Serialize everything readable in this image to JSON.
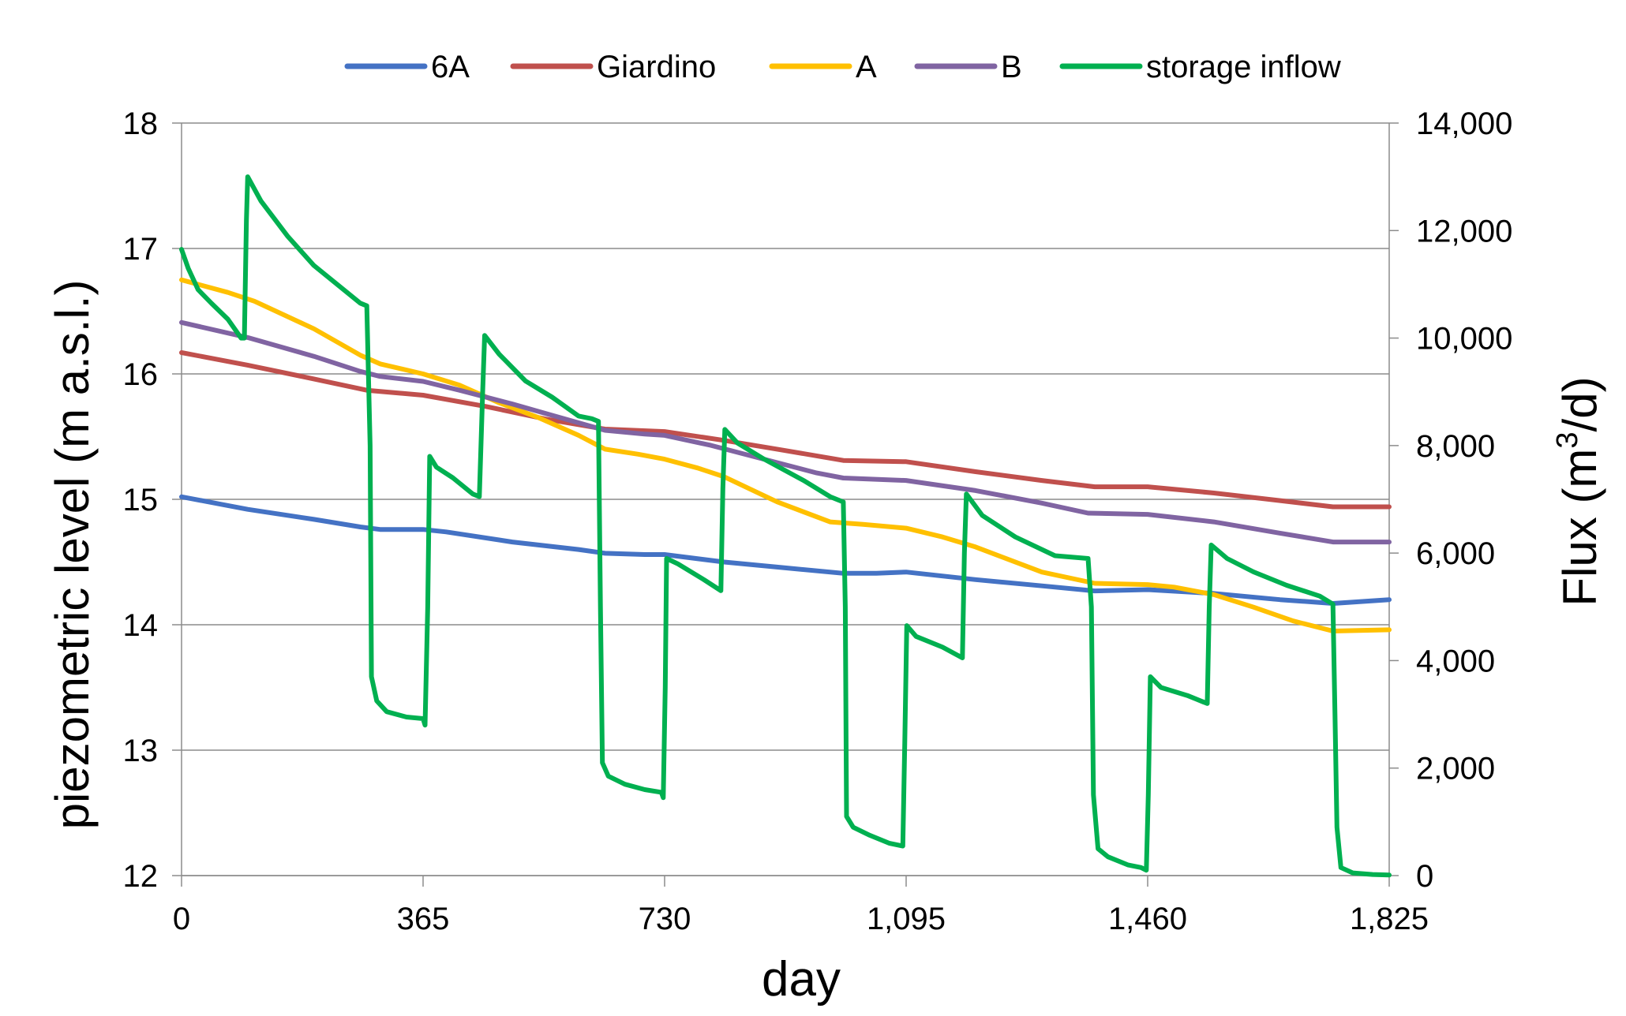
{
  "chart_data": {
    "type": "line",
    "title": "",
    "xlabel": "day",
    "ylabel": "piezometric level (m a.s.l.)",
    "y2label_prefix": "Flux (m",
    "y2label_superscript": "3",
    "y2label_suffix": "/d)",
    "xlim": [
      0,
      1825
    ],
    "ylim": [
      12,
      18
    ],
    "y2lim": [
      0,
      14000
    ],
    "x_ticks": [
      0,
      365,
      730,
      1095,
      1460,
      1825
    ],
    "x_tick_labels": [
      "0",
      "365",
      "730",
      "1,095",
      "1,460",
      "1,825"
    ],
    "y_ticks": [
      12,
      13,
      14,
      15,
      16,
      17,
      18
    ],
    "y_tick_labels": [
      "12",
      "13",
      "14",
      "15",
      "16",
      "17",
      "18"
    ],
    "y2_ticks": [
      0,
      2000,
      4000,
      6000,
      8000,
      10000,
      12000,
      14000
    ],
    "y2_tick_labels": [
      "0",
      "2,000",
      "4,000",
      "6,000",
      "8,000",
      "10,000",
      "12,000",
      "14,000"
    ],
    "grid": "horizontal",
    "legend_position": "top",
    "series": [
      {
        "name": "6A",
        "axis": "left",
        "color": "#4472C4",
        "points": [
          [
            0,
            15.02
          ],
          [
            100,
            14.92
          ],
          [
            200,
            14.84
          ],
          [
            270,
            14.78
          ],
          [
            300,
            14.76
          ],
          [
            365,
            14.76
          ],
          [
            400,
            14.74
          ],
          [
            500,
            14.66
          ],
          [
            600,
            14.6
          ],
          [
            640,
            14.57
          ],
          [
            700,
            14.56
          ],
          [
            730,
            14.56
          ],
          [
            820,
            14.5
          ],
          [
            900,
            14.46
          ],
          [
            1000,
            14.41
          ],
          [
            1050,
            14.41
          ],
          [
            1095,
            14.42
          ],
          [
            1200,
            14.36
          ],
          [
            1300,
            14.31
          ],
          [
            1380,
            14.27
          ],
          [
            1460,
            14.28
          ],
          [
            1560,
            14.25
          ],
          [
            1660,
            14.2
          ],
          [
            1740,
            14.17
          ],
          [
            1825,
            14.2
          ]
        ]
      },
      {
        "name": "Giardino",
        "axis": "left",
        "color": "#C0504D",
        "points": [
          [
            0,
            16.17
          ],
          [
            100,
            16.07
          ],
          [
            200,
            15.96
          ],
          [
            280,
            15.87
          ],
          [
            365,
            15.83
          ],
          [
            460,
            15.74
          ],
          [
            550,
            15.64
          ],
          [
            640,
            15.56
          ],
          [
            730,
            15.54
          ],
          [
            820,
            15.47
          ],
          [
            900,
            15.4
          ],
          [
            1000,
            15.31
          ],
          [
            1095,
            15.3
          ],
          [
            1200,
            15.22
          ],
          [
            1300,
            15.15
          ],
          [
            1380,
            15.1
          ],
          [
            1460,
            15.1
          ],
          [
            1560,
            15.05
          ],
          [
            1660,
            14.99
          ],
          [
            1740,
            14.94
          ],
          [
            1825,
            14.94
          ]
        ]
      },
      {
        "name": "A",
        "axis": "left",
        "color": "#FFC000",
        "points": [
          [
            0,
            16.75
          ],
          [
            70,
            16.65
          ],
          [
            110,
            16.58
          ],
          [
            200,
            16.36
          ],
          [
            270,
            16.15
          ],
          [
            300,
            16.08
          ],
          [
            365,
            16.0
          ],
          [
            420,
            15.91
          ],
          [
            480,
            15.77
          ],
          [
            540,
            15.65
          ],
          [
            600,
            15.51
          ],
          [
            640,
            15.4
          ],
          [
            690,
            15.36
          ],
          [
            730,
            15.32
          ],
          [
            780,
            15.25
          ],
          [
            820,
            15.18
          ],
          [
            900,
            14.98
          ],
          [
            980,
            14.82
          ],
          [
            1030,
            14.8
          ],
          [
            1095,
            14.77
          ],
          [
            1150,
            14.7
          ],
          [
            1200,
            14.62
          ],
          [
            1300,
            14.42
          ],
          [
            1380,
            14.33
          ],
          [
            1460,
            14.32
          ],
          [
            1500,
            14.3
          ],
          [
            1560,
            14.24
          ],
          [
            1620,
            14.14
          ],
          [
            1680,
            14.03
          ],
          [
            1740,
            13.95
          ],
          [
            1825,
            13.96
          ]
        ]
      },
      {
        "name": "B",
        "axis": "left",
        "color": "#8064A2",
        "points": [
          [
            0,
            16.41
          ],
          [
            100,
            16.29
          ],
          [
            200,
            16.14
          ],
          [
            270,
            16.02
          ],
          [
            300,
            15.98
          ],
          [
            365,
            15.94
          ],
          [
            420,
            15.87
          ],
          [
            500,
            15.76
          ],
          [
            560,
            15.67
          ],
          [
            640,
            15.55
          ],
          [
            700,
            15.52
          ],
          [
            730,
            15.51
          ],
          [
            800,
            15.43
          ],
          [
            880,
            15.32
          ],
          [
            960,
            15.21
          ],
          [
            1000,
            15.17
          ],
          [
            1095,
            15.15
          ],
          [
            1200,
            15.07
          ],
          [
            1300,
            14.97
          ],
          [
            1370,
            14.89
          ],
          [
            1460,
            14.88
          ],
          [
            1560,
            14.82
          ],
          [
            1660,
            14.73
          ],
          [
            1740,
            14.66
          ],
          [
            1825,
            14.66
          ]
        ]
      },
      {
        "name": "storage inflow",
        "axis": "right",
        "color": "#00B050",
        "points": [
          [
            0,
            11650
          ],
          [
            10,
            11300
          ],
          [
            25,
            10900
          ],
          [
            45,
            10650
          ],
          [
            70,
            10350
          ],
          [
            90,
            10000
          ],
          [
            95,
            10000
          ],
          [
            98,
            12200
          ],
          [
            100,
            13000
          ],
          [
            120,
            12550
          ],
          [
            160,
            11900
          ],
          [
            200,
            11350
          ],
          [
            240,
            10950
          ],
          [
            270,
            10650
          ],
          [
            280,
            10600
          ],
          [
            285,
            8000
          ],
          [
            287,
            3700
          ],
          [
            295,
            3250
          ],
          [
            310,
            3050
          ],
          [
            340,
            2950
          ],
          [
            365,
            2920
          ],
          [
            368,
            2800
          ],
          [
            372,
            5000
          ],
          [
            375,
            7800
          ],
          [
            385,
            7600
          ],
          [
            410,
            7400
          ],
          [
            440,
            7100
          ],
          [
            450,
            7050
          ],
          [
            455,
            9000
          ],
          [
            458,
            10050
          ],
          [
            480,
            9700
          ],
          [
            520,
            9200
          ],
          [
            560,
            8900
          ],
          [
            600,
            8550
          ],
          [
            620,
            8500
          ],
          [
            630,
            8450
          ],
          [
            633,
            5000
          ],
          [
            636,
            2100
          ],
          [
            645,
            1850
          ],
          [
            670,
            1700
          ],
          [
            700,
            1600
          ],
          [
            725,
            1550
          ],
          [
            728,
            1450
          ],
          [
            731,
            3500
          ],
          [
            733,
            5900
          ],
          [
            750,
            5800
          ],
          [
            790,
            5500
          ],
          [
            815,
            5300
          ],
          [
            818,
            7200
          ],
          [
            821,
            8300
          ],
          [
            840,
            8050
          ],
          [
            880,
            7750
          ],
          [
            940,
            7350
          ],
          [
            980,
            7050
          ],
          [
            1000,
            6950
          ],
          [
            1003,
            5000
          ],
          [
            1005,
            1100
          ],
          [
            1015,
            900
          ],
          [
            1040,
            750
          ],
          [
            1070,
            600
          ],
          [
            1090,
            550
          ],
          [
            1093,
            2500
          ],
          [
            1096,
            4650
          ],
          [
            1110,
            4450
          ],
          [
            1150,
            4250
          ],
          [
            1180,
            4050
          ],
          [
            1183,
            6000
          ],
          [
            1186,
            7100
          ],
          [
            1210,
            6700
          ],
          [
            1260,
            6300
          ],
          [
            1320,
            5950
          ],
          [
            1370,
            5900
          ],
          [
            1375,
            5000
          ],
          [
            1378,
            1500
          ],
          [
            1385,
            500
          ],
          [
            1400,
            350
          ],
          [
            1430,
            200
          ],
          [
            1450,
            150
          ],
          [
            1458,
            100
          ],
          [
            1461,
            1500
          ],
          [
            1464,
            3700
          ],
          [
            1480,
            3500
          ],
          [
            1520,
            3350
          ],
          [
            1550,
            3200
          ],
          [
            1553,
            5000
          ],
          [
            1556,
            6150
          ],
          [
            1580,
            5900
          ],
          [
            1620,
            5650
          ],
          [
            1670,
            5400
          ],
          [
            1720,
            5200
          ],
          [
            1740,
            5050
          ],
          [
            1743,
            3000
          ],
          [
            1746,
            900
          ],
          [
            1752,
            150
          ],
          [
            1770,
            50
          ],
          [
            1800,
            20
          ],
          [
            1825,
            10
          ]
        ]
      }
    ]
  }
}
